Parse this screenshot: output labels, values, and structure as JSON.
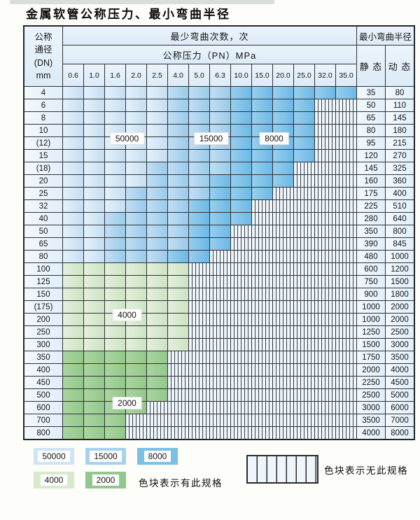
{
  "title": "金属软管公称压力、最小弯曲半径",
  "table": {
    "header": {
      "dn_lines": [
        "公称",
        "通径",
        "(DN)",
        "mm"
      ],
      "bend_cycles": "最少弯曲次数，次",
      "pressure": "公称压力（PN）MPa",
      "pressures": [
        "0.6",
        "1.0",
        "1.6",
        "2.0",
        "2.5",
        "4.0",
        "5.0",
        "6.3",
        "10.0",
        "15.0",
        "20.0",
        "25.0",
        "32.0",
        "35.0"
      ],
      "radius": "最小弯曲半径",
      "static": "静 态",
      "dynamic": "动 态"
    },
    "cell_legend": {
      "L": "50000",
      "M": "15000",
      "D": "8000",
      "G": "4000",
      "E": "2000",
      "X": "no-spec"
    },
    "rows": [
      {
        "dn": "4",
        "cells": "LLLLLMMMDDDDDD",
        "static": "35",
        "dynamic": "80"
      },
      {
        "dn": "6",
        "cells": "LLLLLMMMDDDDXX",
        "static": "50",
        "dynamic": "110"
      },
      {
        "dn": "8",
        "cells": "LLLLLMMMDDDDXX",
        "static": "65",
        "dynamic": "145"
      },
      {
        "dn": "10",
        "cells": "LLLLLMMMDDDDXX",
        "static": "80",
        "dynamic": "180"
      },
      {
        "dn": "(12)",
        "cells": "LLLLLMMMDDDDXX",
        "static": "95",
        "dynamic": "215"
      },
      {
        "dn": "15",
        "cells": "LLLLLMMMDDDDXX",
        "static": "120",
        "dynamic": "270"
      },
      {
        "dn": "(18)",
        "cells": "LLLLMMMMDDDXXX",
        "static": "145",
        "dynamic": "325"
      },
      {
        "dn": "20",
        "cells": "LLLLMMMDDDDXXX",
        "static": "160",
        "dynamic": "360"
      },
      {
        "dn": "25",
        "cells": "LLLMMMMDDDXXXX",
        "static": "175",
        "dynamic": "400"
      },
      {
        "dn": "32",
        "cells": "LLLMMMDDDXXXXX",
        "static": "225",
        "dynamic": "510"
      },
      {
        "dn": "40",
        "cells": "LLMMMMDDDXXXXX",
        "static": "280",
        "dynamic": "640"
      },
      {
        "dn": "50",
        "cells": "LLMMMMDDXXXXXX",
        "static": "350",
        "dynamic": "800"
      },
      {
        "dn": "65",
        "cells": "LLMMMMDDXXXXXX",
        "static": "390",
        "dynamic": "845"
      },
      {
        "dn": "80",
        "cells": "LLMMMDDXXXXXXX",
        "static": "480",
        "dynamic": "1000"
      },
      {
        "dn": "100",
        "cells": "GGGGGGXXXXXXXX",
        "static": "600",
        "dynamic": "1200"
      },
      {
        "dn": "125",
        "cells": "GGGGGGXXXXXXXX",
        "static": "750",
        "dynamic": "1500"
      },
      {
        "dn": "150",
        "cells": "GGGGGGXXXXXXXX",
        "static": "900",
        "dynamic": "1800"
      },
      {
        "dn": "(175)",
        "cells": "GGGGGGXXXXXXXX",
        "static": "1000",
        "dynamic": "2000"
      },
      {
        "dn": "200",
        "cells": "GGGGGGXXXXXXXX",
        "static": "1000",
        "dynamic": "2000"
      },
      {
        "dn": "250",
        "cells": "GGGGGGXXXXXXXX",
        "static": "1250",
        "dynamic": "2500"
      },
      {
        "dn": "300",
        "cells": "GGGGGGXXXXXXXX",
        "static": "1500",
        "dynamic": "3000"
      },
      {
        "dn": "350",
        "cells": "EEEEEXXXXXXXXX",
        "static": "1750",
        "dynamic": "3500"
      },
      {
        "dn": "400",
        "cells": "EEEEEXXXXXXXXX",
        "static": "2000",
        "dynamic": "4000"
      },
      {
        "dn": "450",
        "cells": "EEEEEXXXXXXXXX",
        "static": "2250",
        "dynamic": "4500"
      },
      {
        "dn": "500",
        "cells": "EEEEEXXXXXXXXX",
        "static": "2500",
        "dynamic": "5000"
      },
      {
        "dn": "600",
        "cells": "EEEEXXXXXXXXXX",
        "static": "3000",
        "dynamic": "6000"
      },
      {
        "dn": "700",
        "cells": "EEEXXXXXXXXXXX",
        "static": "3500",
        "dynamic": "7000"
      },
      {
        "dn": "800",
        "cells": "EEEXXXXXXXXXXX",
        "static": "4000",
        "dynamic": "8000"
      }
    ]
  },
  "overlays": [
    {
      "label": "50000",
      "col": 2,
      "span": 2,
      "row": 4
    },
    {
      "label": "15000",
      "col": 6,
      "span": 2,
      "row": 4
    },
    {
      "label": "8000",
      "col": 9,
      "span": 2,
      "row": 4
    },
    {
      "label": "4000",
      "col": 2,
      "span": 2,
      "row": 18
    },
    {
      "label": "2000",
      "col": 2,
      "span": 2,
      "row": 25
    }
  ],
  "legend": {
    "items": [
      {
        "label": "50000",
        "color": "#cfe4f5"
      },
      {
        "label": "15000",
        "color": "#a6d2ee"
      },
      {
        "label": "8000",
        "color": "#7cc0e8"
      },
      {
        "label": "4000",
        "color": "#d7e9cf"
      },
      {
        "label": "2000",
        "color": "#93c88d"
      }
    ],
    "has_spec_note": "色块表示有此规格",
    "no_spec_note": "色块表示无此规格"
  },
  "colors": {
    "blue_light": "#cfe4f5",
    "blue_medium": "#a6d2ee",
    "blue_dark": "#7cc0e8",
    "green_light": "#d7e9cf",
    "green_medium": "#93c88d",
    "no_spec_bg": "#eef5fb",
    "grid_line": "#2e3338"
  }
}
